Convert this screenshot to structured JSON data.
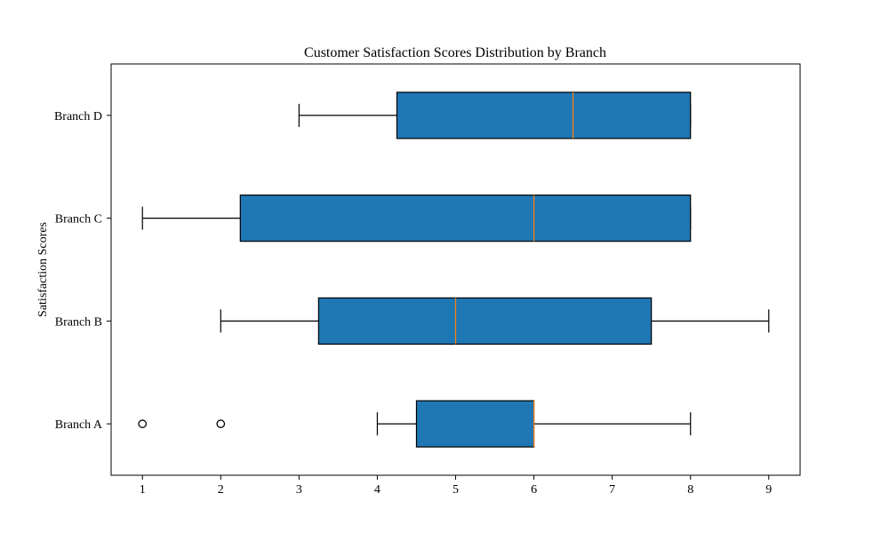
{
  "chart_data": {
    "type": "boxplot",
    "orientation": "horizontal",
    "title": "Customer Satisfaction Scores Distribution by Branch",
    "xlabel": "",
    "ylabel": "Satisfaction Scores",
    "xlim": [
      0.6,
      9.4
    ],
    "xticks": [
      1,
      2,
      3,
      4,
      5,
      6,
      7,
      8,
      9
    ],
    "grid": false,
    "box_color": "#1f77b4",
    "median_color": "#ff7f0e",
    "categories": [
      "Branch A",
      "Branch B",
      "Branch C",
      "Branch D"
    ],
    "boxes": [
      {
        "label": "Branch A",
        "whisker_low": 4,
        "q1": 4.5,
        "median": 6,
        "q3": 6,
        "whisker_high": 8,
        "outliers": [
          1,
          2
        ]
      },
      {
        "label": "Branch B",
        "whisker_low": 2,
        "q1": 3.25,
        "median": 5,
        "q3": 7.5,
        "whisker_high": 9,
        "outliers": []
      },
      {
        "label": "Branch C",
        "whisker_low": 1,
        "q1": 2.25,
        "median": 6,
        "q3": 8,
        "whisker_high": 8,
        "outliers": []
      },
      {
        "label": "Branch D",
        "whisker_low": 3,
        "q1": 4.25,
        "median": 6.5,
        "q3": 8,
        "whisker_high": 8,
        "outliers": []
      }
    ]
  }
}
